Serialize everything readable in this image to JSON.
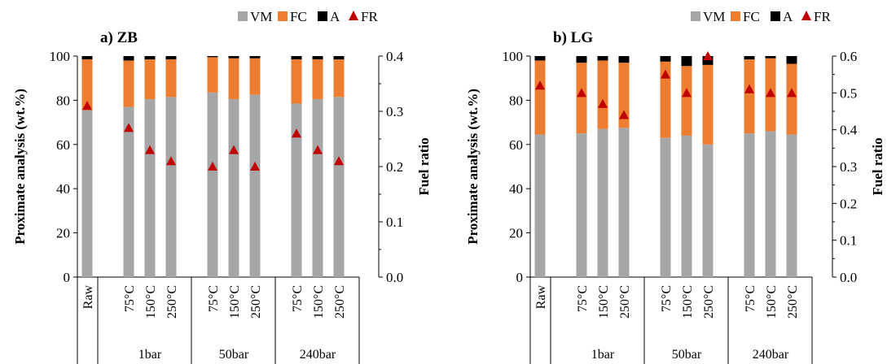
{
  "chart_data": [
    {
      "type": "bar",
      "panel_title": "a) ZB",
      "stacked": true,
      "categories": [
        "Raw",
        "75°C",
        "150°C",
        "250°C",
        "75°C",
        "150°C",
        "250°C",
        "75°C",
        "150°C",
        "250°C"
      ],
      "groups": [
        "",
        "1bar",
        "1bar",
        "1bar",
        "50bar",
        "50bar",
        "50bar",
        "240bar",
        "240bar",
        "240bar"
      ],
      "series": [
        {
          "name": "VM",
          "color": "#a6a6a6",
          "values": [
            75.5,
            77.0,
            80.5,
            81.5,
            83.5,
            80.5,
            82.5,
            78.5,
            80.5,
            81.5
          ]
        },
        {
          "name": "FC",
          "color": "#ed7d31",
          "values": [
            23.0,
            21.0,
            18.0,
            17.0,
            16.0,
            18.5,
            16.5,
            20.0,
            18.0,
            17.0
          ]
        },
        {
          "name": "A",
          "color": "#000000",
          "values": [
            1.5,
            2.0,
            1.5,
            1.5,
            0.5,
            1.0,
            1.0,
            1.5,
            1.5,
            1.5
          ]
        }
      ],
      "secondary_series": {
        "name": "FR",
        "color": "#c00000",
        "marker": "triangle",
        "values": [
          0.31,
          0.27,
          0.23,
          0.21,
          0.2,
          0.23,
          0.2,
          0.26,
          0.23,
          0.21
        ]
      },
      "ylabel": "Proximate analysis (wt.%)",
      "y2label": "Fuel ratio",
      "ylim": [
        0,
        100
      ],
      "y2lim": [
        0,
        0.4
      ],
      "yticks": [
        "0",
        "20",
        "40",
        "60",
        "80",
        "100"
      ],
      "y2ticks": [
        "0.0",
        "0.1",
        "0.2",
        "0.3",
        "0.4"
      ],
      "legend": [
        "VM",
        "FC",
        "A",
        "FR"
      ],
      "legend_position": "top-right"
    },
    {
      "type": "bar",
      "panel_title": "b) LG",
      "stacked": true,
      "categories": [
        "Raw",
        "75°C",
        "150°C",
        "250°C",
        "75°C",
        "150°C",
        "250°C",
        "75°C",
        "150°C",
        "250°C"
      ],
      "groups": [
        "",
        "1bar",
        "1bar",
        "1bar",
        "50bar",
        "50bar",
        "50bar",
        "240bar",
        "240bar",
        "240bar"
      ],
      "series": [
        {
          "name": "VM",
          "color": "#a6a6a6",
          "values": [
            64.5,
            65.0,
            67.0,
            67.5,
            63.0,
            64.0,
            60.0,
            65.0,
            66.0,
            64.5
          ]
        },
        {
          "name": "FC",
          "color": "#ed7d31",
          "values": [
            33.5,
            32.0,
            31.0,
            29.5,
            34.5,
            31.5,
            36.0,
            33.5,
            33.0,
            32.0
          ]
        },
        {
          "name": "A",
          "color": "#000000",
          "values": [
            2.0,
            3.0,
            2.0,
            3.0,
            2.5,
            4.5,
            4.0,
            1.5,
            1.0,
            3.5
          ]
        }
      ],
      "secondary_series": {
        "name": "FR",
        "color": "#c00000",
        "marker": "triangle",
        "values": [
          0.52,
          0.5,
          0.47,
          0.44,
          0.55,
          0.5,
          0.6,
          0.51,
          0.5,
          0.5
        ]
      },
      "ylabel": "Proximate analysis (wt.%)",
      "y2label": "Fuel ratio",
      "ylim": [
        0,
        100
      ],
      "y2lim": [
        0,
        0.6
      ],
      "yticks": [
        "0",
        "20",
        "40",
        "60",
        "80",
        "100"
      ],
      "y2ticks": [
        "0.0",
        "0.1",
        "0.2",
        "0.3",
        "0.4",
        "0.5",
        "0.6"
      ],
      "legend": [
        "VM",
        "FC",
        "A",
        "FR"
      ],
      "legend_position": "top-right"
    }
  ]
}
